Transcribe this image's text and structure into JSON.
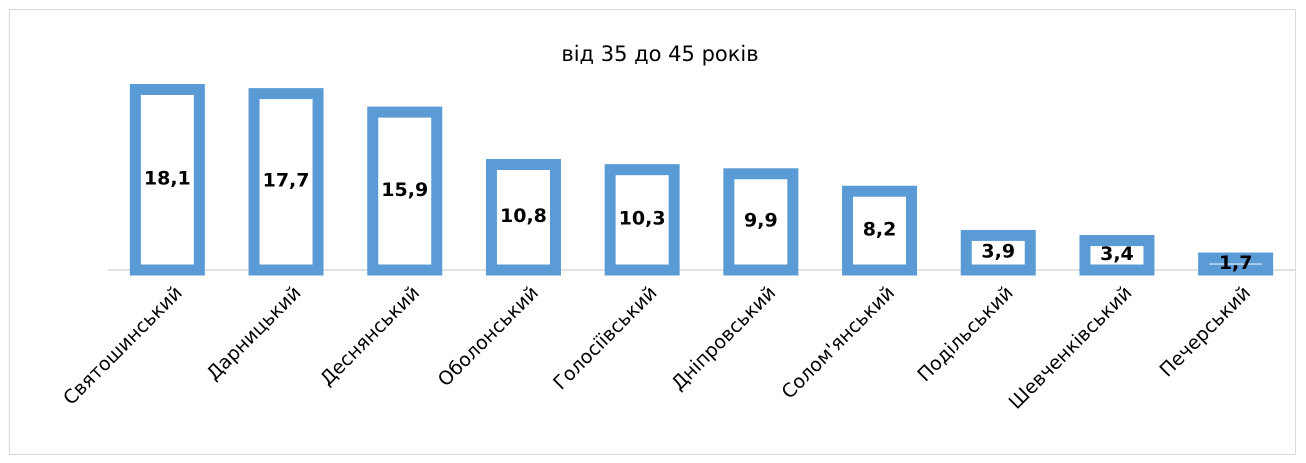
{
  "chart_data": {
    "type": "bar",
    "title": "від 35 до 45 років",
    "categories": [
      "Святошинський",
      "Дарницький",
      "Деснянський",
      "Оболонський",
      "Голосіївський",
      "Дніпровський",
      "Солом'янський",
      "Подільський",
      "Шевченківський",
      "Печерський"
    ],
    "values": [
      18.1,
      17.7,
      15.9,
      10.8,
      10.3,
      9.9,
      8.2,
      3.9,
      3.4,
      1.7
    ],
    "value_labels": [
      "18,1",
      "17,7",
      "15,9",
      "10,8",
      "10,3",
      "9,9",
      "8,2",
      "3,9",
      "3,4",
      "1,7"
    ],
    "color": "#5b9bd5"
  }
}
